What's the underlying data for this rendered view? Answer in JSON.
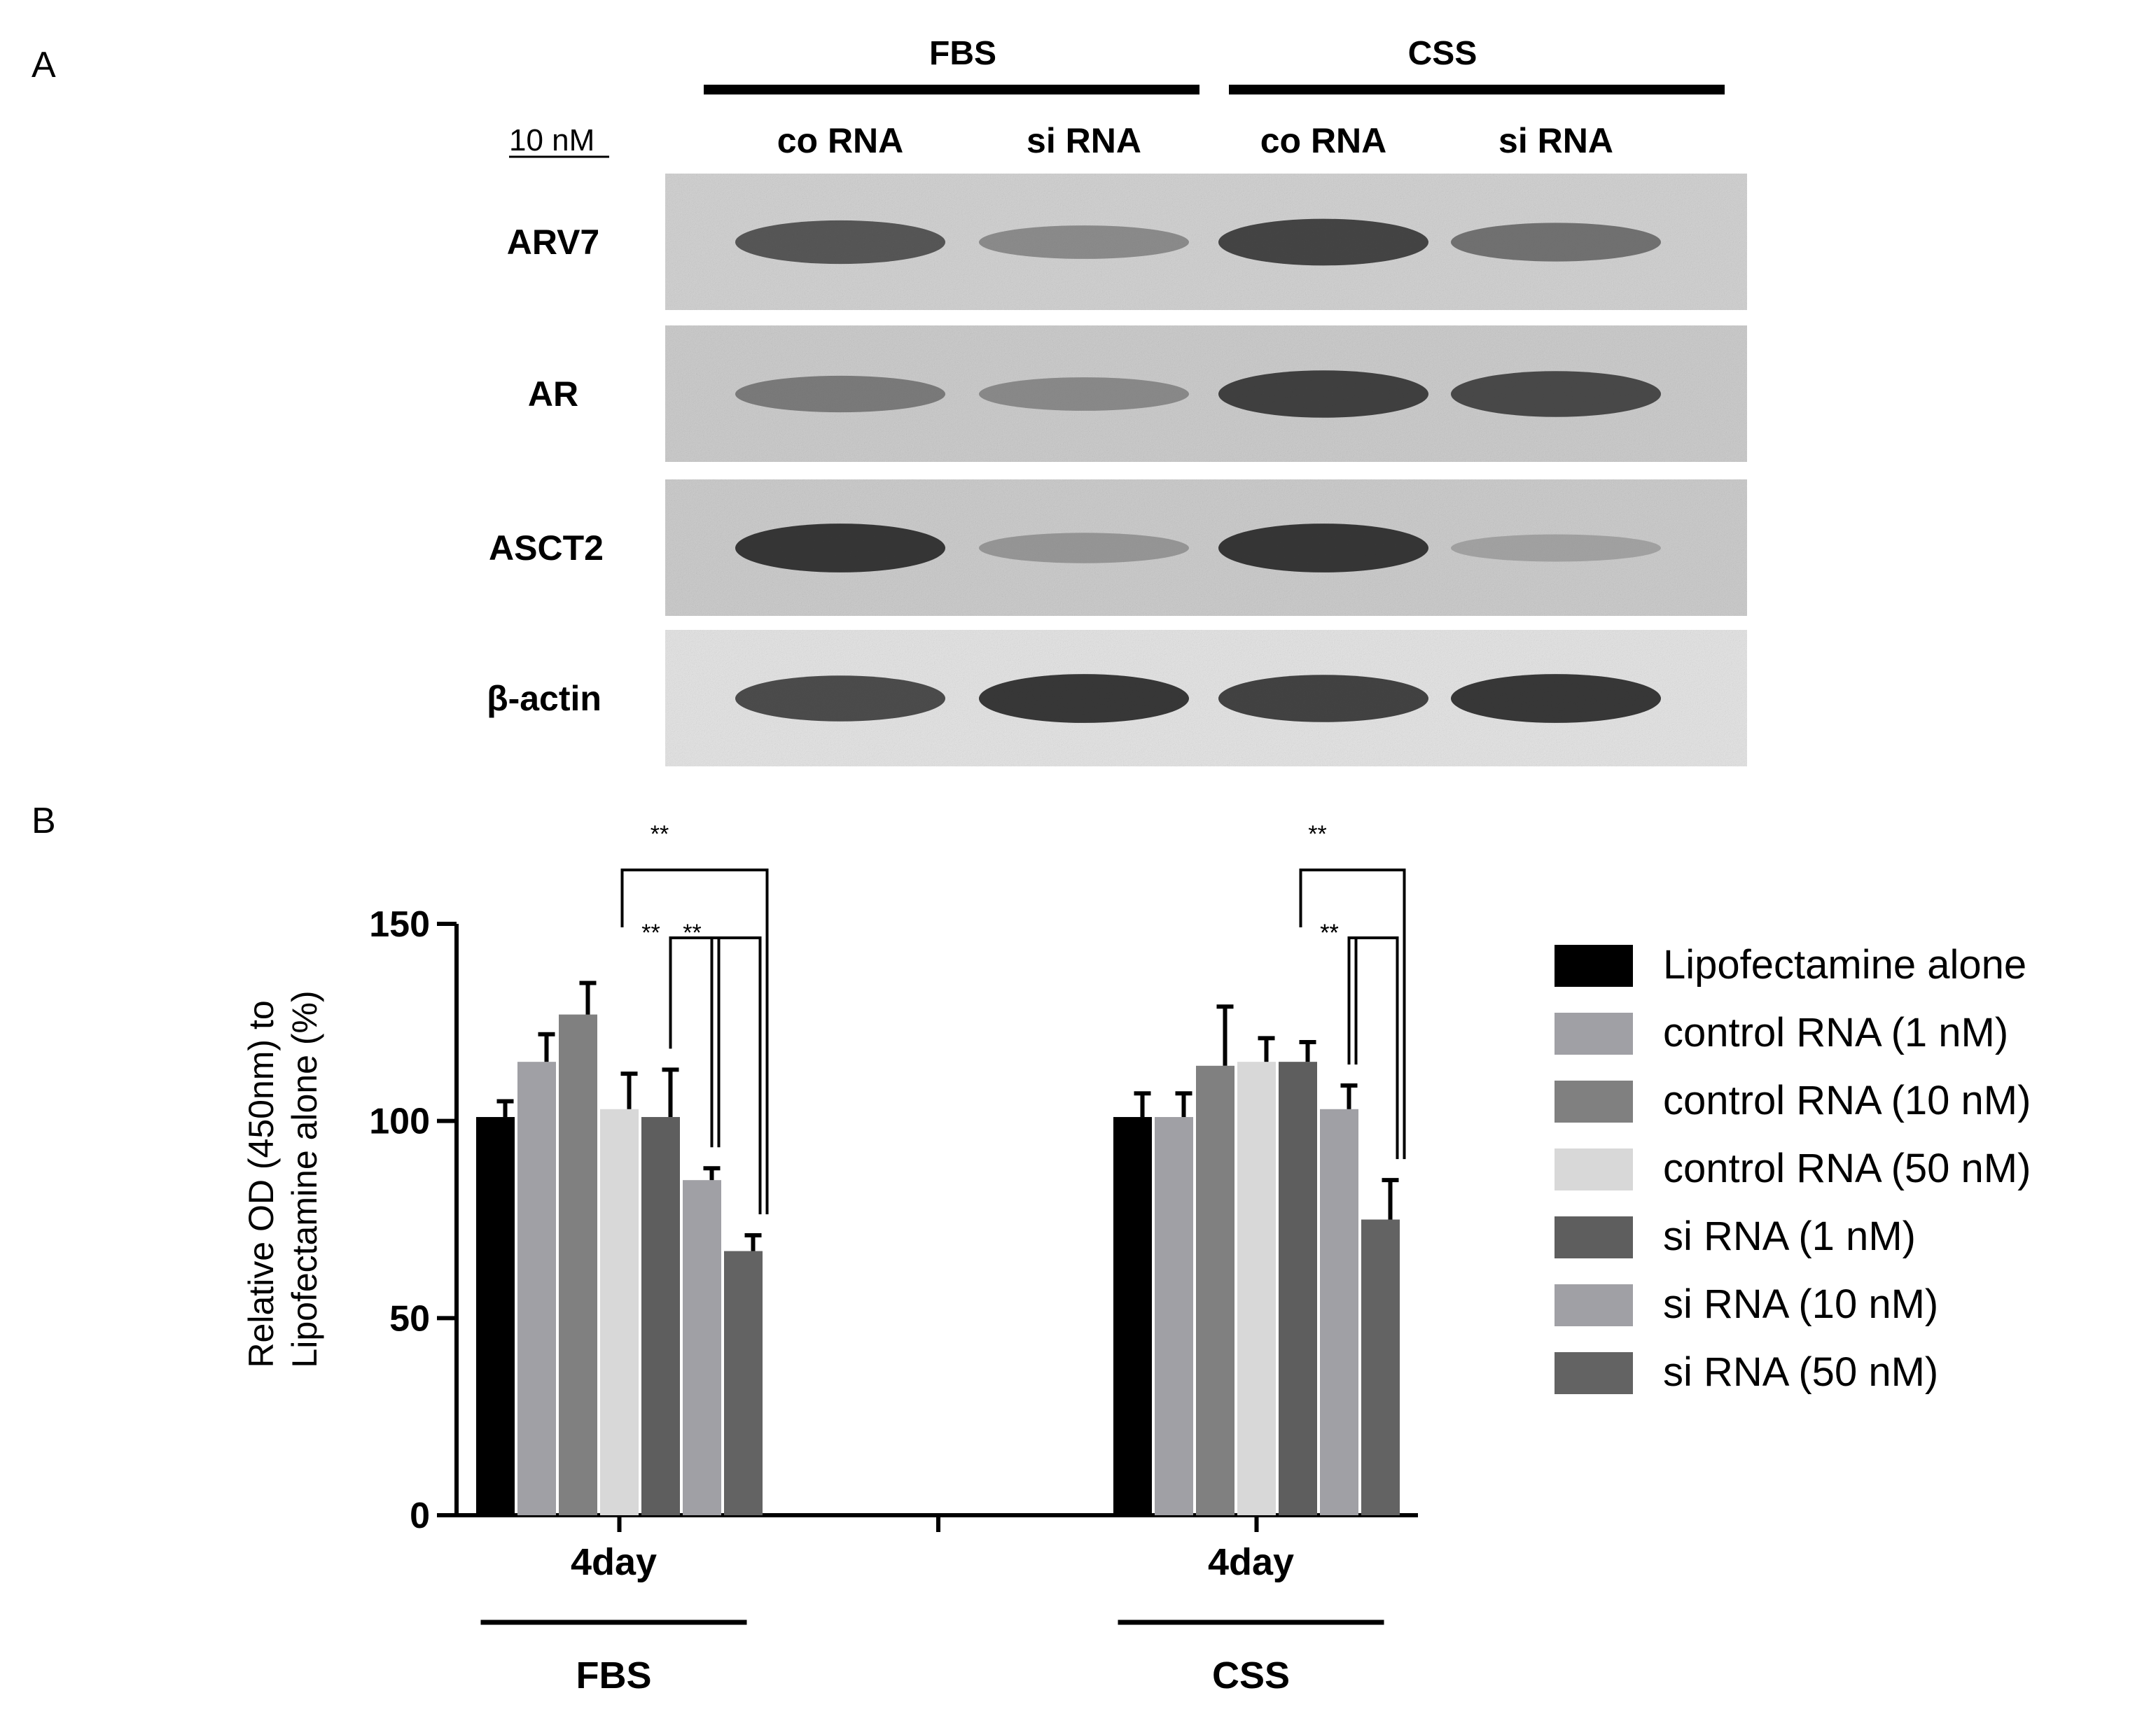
{
  "panel_a": {
    "label": "A",
    "conditions": [
      "FBS",
      "CSS"
    ],
    "lanes": [
      "co RNA",
      "si RNA",
      "co RNA",
      "si RNA"
    ],
    "dose_label": "10 nM",
    "blots": [
      {
        "label": "ARV7",
        "band_intensity": [
          0.78,
          0.45,
          0.88,
          0.62
        ]
      },
      {
        "label": "AR",
        "band_intensity": [
          0.55,
          0.45,
          0.9,
          0.85
        ]
      },
      {
        "label": "ASCT2",
        "band_intensity": [
          0.95,
          0.35,
          0.95,
          0.25
        ]
      },
      {
        "label": "β-actin",
        "band_intensity": [
          0.85,
          0.95,
          0.9,
          0.95
        ]
      }
    ]
  },
  "panel_b_label": "B",
  "chart_data": {
    "type": "bar",
    "categories": [
      "4day",
      "4day"
    ],
    "category_groups": [
      "FBS",
      "CSS"
    ],
    "ylabel": "Relative OD (450nm) to\nLipofectamine alone (%)",
    "ylim": [
      0,
      150
    ],
    "yticks": [
      0,
      50,
      100,
      150
    ],
    "legend_position": "right",
    "series": [
      {
        "name": "Lipofectamine alone",
        "color": "#000000",
        "values": [
          101,
          101
        ],
        "errors": [
          4,
          6
        ]
      },
      {
        "name": "control RNA (1 nM)",
        "color": "#a0a0a5",
        "values": [
          115,
          101
        ],
        "errors": [
          7,
          6
        ]
      },
      {
        "name": "control RNA (10 nM)",
        "color": "#808080",
        "values": [
          127,
          114
        ],
        "errors": [
          8,
          15
        ]
      },
      {
        "name": "control RNA (50 nM)",
        "color": "#d8d8d8",
        "values": [
          103,
          115
        ],
        "errors": [
          9,
          6
        ]
      },
      {
        "name": "si RNA (1 nM)",
        "color": "#5e5e5e",
        "values": [
          101,
          115
        ],
        "errors": [
          12,
          5
        ]
      },
      {
        "name": "si RNA (10 nM)",
        "color": "#a0a0a5",
        "values": [
          85,
          103
        ],
        "errors": [
          3,
          6
        ]
      },
      {
        "name": "si RNA (50 nM)",
        "color": "#636363",
        "values": [
          67,
          75
        ],
        "errors": [
          4,
          10
        ]
      }
    ],
    "annotations": [
      {
        "group": 0,
        "from": 3,
        "to": 6,
        "level": "high",
        "text": "**"
      },
      {
        "group": 0,
        "from": 4,
        "to": 5,
        "level": "low",
        "text": "**"
      },
      {
        "group": 0,
        "from": 5,
        "to": 6,
        "level": "low",
        "text": "**"
      },
      {
        "group": 1,
        "from": 4,
        "to": 6,
        "level": "high",
        "text": "**"
      },
      {
        "group": 1,
        "from": 5,
        "to": 5,
        "level": "low",
        "text": "**"
      },
      {
        "group": 1,
        "from": 5,
        "to": 6,
        "level": "low",
        "text": "**"
      }
    ]
  }
}
